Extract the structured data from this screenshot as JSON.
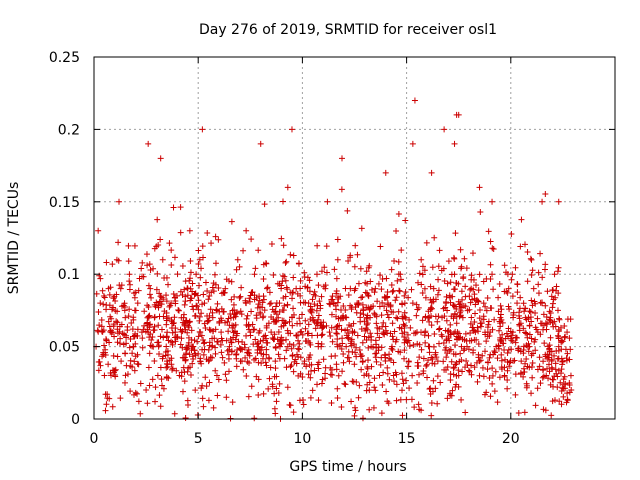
{
  "chart_data": {
    "type": "scatter",
    "title": "Day 276 of 2019, SRMTID for receiver osl1",
    "xlabel": "GPS time / hours",
    "ylabel": "SRMTID / TECUs",
    "xlim": [
      0,
      25
    ],
    "ylim": [
      0,
      0.25
    ],
    "x_ticks": [
      "0",
      "5",
      "10",
      "15",
      "20"
    ],
    "y_ticks": [
      "0",
      "0.05",
      "0.1",
      "0.15",
      "0.2",
      "0.25"
    ],
    "grid": true,
    "marker": "+",
    "color": "#cc0000",
    "x": [
      0.1,
      0.3,
      0.5,
      0.7,
      0.9,
      1.1,
      1.3,
      1.5,
      1.7,
      1.9,
      2.1,
      2.3,
      2.5,
      2.7,
      2.9,
      3.1,
      3.3,
      3.5,
      3.7,
      3.9,
      4.1,
      4.3,
      4.5,
      4.7,
      4.9,
      5.1,
      5.3,
      5.5,
      5.7,
      5.9,
      6.1,
      6.3,
      6.5,
      6.7,
      6.9,
      7.1,
      7.3,
      7.5,
      7.7,
      7.9,
      8.1,
      8.3,
      8.5,
      8.7,
      8.9,
      9.1,
      9.3,
      9.5,
      9.7,
      9.9,
      10.1,
      10.3,
      10.5,
      10.7,
      10.9,
      11.1,
      11.3,
      11.5,
      11.7,
      11.9,
      12.1,
      12.3,
      12.5,
      12.7,
      12.9,
      13.1,
      13.3,
      13.5,
      13.7,
      13.9,
      14.1,
      14.3,
      14.5,
      14.7,
      14.9,
      15.1,
      15.3,
      15.5,
      15.7,
      15.9,
      16.1,
      16.3,
      16.5,
      16.7,
      16.9,
      17.1,
      17.3,
      17.5,
      17.7,
      17.9,
      18.1,
      18.3,
      18.5,
      18.7,
      18.9,
      19.1,
      19.3,
      19.5,
      19.7,
      19.9,
      20.1,
      20.3,
      20.5,
      20.7,
      20.9,
      21.1,
      21.3,
      21.5,
      21.7,
      21.9,
      22.1,
      22.3,
      22.5,
      22.7,
      22.9,
      0.2,
      1.2,
      2.6,
      3.2,
      4.6,
      5.2,
      7.3,
      8.0,
      9.3,
      9.5,
      11.2,
      11.9,
      14.0,
      15.3,
      15.4,
      16.2,
      16.8,
      17.3,
      17.4,
      17.5,
      18.5,
      19.1,
      21.5,
      22.3
    ],
    "y": [
      0.05,
      0.08,
      0.03,
      0.09,
      0.06,
      0.11,
      0.04,
      0.07,
      0.1,
      0.05,
      0.08,
      0.06,
      0.02,
      0.09,
      0.07,
      0.05,
      0.11,
      0.04,
      0.08,
      0.06,
      0.03,
      0.07,
      0.09,
      0.05,
      0.1,
      0.06,
      0.08,
      0.04,
      0.07,
      0.03,
      0.06,
      0.09,
      0.05,
      0.07,
      0.11,
      0.04,
      0.08,
      0.06,
      0.1,
      0.05,
      0.07,
      0.09,
      0.06,
      0.04,
      0.08,
      0.12,
      0.05,
      0.07,
      0.09,
      0.06,
      0.04,
      0.08,
      0.07,
      0.1,
      0.05,
      0.09,
      0.06,
      0.08,
      0.11,
      0.07,
      0.05,
      0.09,
      0.06,
      0.08,
      0.04,
      0.07,
      0.05,
      0.09,
      0.03,
      0.06,
      0.08,
      0.05,
      0.07,
      0.1,
      0.06,
      0.04,
      0.08,
      0.06,
      0.11,
      0.07,
      0.05,
      0.09,
      0.04,
      0.07,
      0.08,
      0.06,
      0.1,
      0.03,
      0.07,
      0.05,
      0.09,
      0.06,
      0.04,
      0.08,
      0.06,
      0.1,
      0.05,
      0.07,
      0.03,
      0.09,
      0.06,
      0.08,
      0.04,
      0.07,
      0.05,
      0.09,
      0.06,
      0.08,
      0.03,
      0.07,
      0.1,
      0.05,
      0.04,
      0.06,
      0.02,
      0.13,
      0.15,
      0.19,
      0.18,
      0.13,
      0.2,
      0.13,
      0.19,
      0.16,
      0.2,
      0.15,
      0.18,
      0.17,
      0.19,
      0.22,
      0.17,
      0.2,
      0.19,
      0.21,
      0.21,
      0.16,
      0.15,
      0.15,
      0.15
    ],
    "noise_seed": 276
  }
}
